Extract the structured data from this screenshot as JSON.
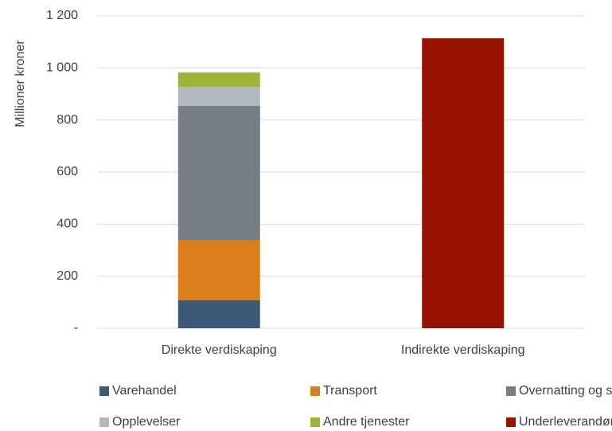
{
  "chart_data": {
    "type": "stacked_bar",
    "y_label": "Millioner kroner",
    "categories": [
      "Direkte verdiskaping",
      "Indirekte verdiskaping"
    ],
    "series": [
      {
        "name": "Varehandel",
        "color": "#3b5a7a",
        "values": [
          108,
          null
        ]
      },
      {
        "name": "Transport",
        "color": "#d97f1a",
        "values": [
          230,
          null
        ]
      },
      {
        "name": "Overnatting og servering",
        "color": "#747c84",
        "values": [
          516,
          null
        ]
      },
      {
        "name": "Opplevelser",
        "color": "#b1b8bf",
        "values": [
          73,
          null
        ]
      },
      {
        "name": "Andre tjenester",
        "color": "#9db53a",
        "values": [
          56,
          null
        ]
      },
      {
        "name": "Underleverandører",
        "color": "#951200",
        "values": [
          null,
          1114
        ]
      }
    ],
    "ylim": [
      0,
      1200
    ],
    "yticks": [
      {
        "value": 0,
        "label": "-"
      },
      200,
      400,
      600,
      800,
      {
        "value": 1000,
        "label": "1 000"
      },
      {
        "value": 1200,
        "label": "1 200"
      }
    ],
    "grid": true
  }
}
